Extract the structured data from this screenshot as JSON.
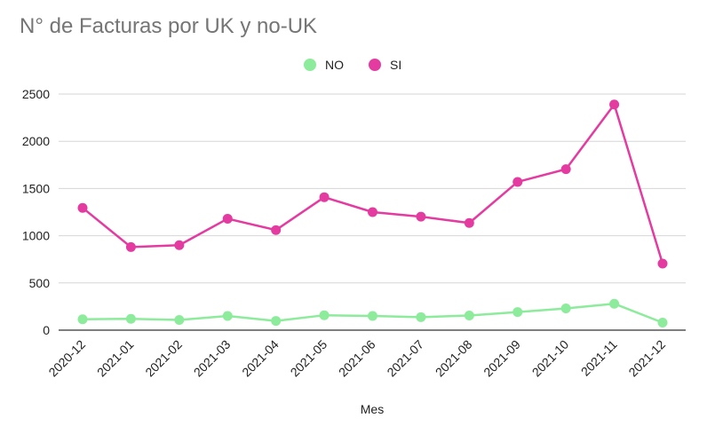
{
  "chart_data": {
    "type": "line",
    "title": "N° de Facturas por UK y no-UK",
    "xlabel": "Mes",
    "ylabel": "",
    "categories": [
      "2020-12",
      "2021-01",
      "2021-02",
      "2021-03",
      "2021-04",
      "2021-05",
      "2021-06",
      "2021-07",
      "2021-08",
      "2021-09",
      "2021-10",
      "2021-11",
      "2021-12"
    ],
    "series": [
      {
        "name": "NO",
        "color": "#8DEB9C",
        "values": [
          115,
          120,
          108,
          150,
          98,
          158,
          150,
          138,
          155,
          192,
          230,
          280,
          80
        ]
      },
      {
        "name": "SI",
        "color": "#E43BA0",
        "values": [
          1295,
          880,
          900,
          1180,
          1060,
          1408,
          1250,
          1202,
          1135,
          1570,
          1705,
          2390,
          705
        ]
      }
    ],
    "ylim": [
      0,
      2500
    ],
    "yticks": [
      0,
      500,
      1000,
      1500,
      2000,
      2500
    ],
    "grid": true,
    "legend_position": "top-center"
  }
}
